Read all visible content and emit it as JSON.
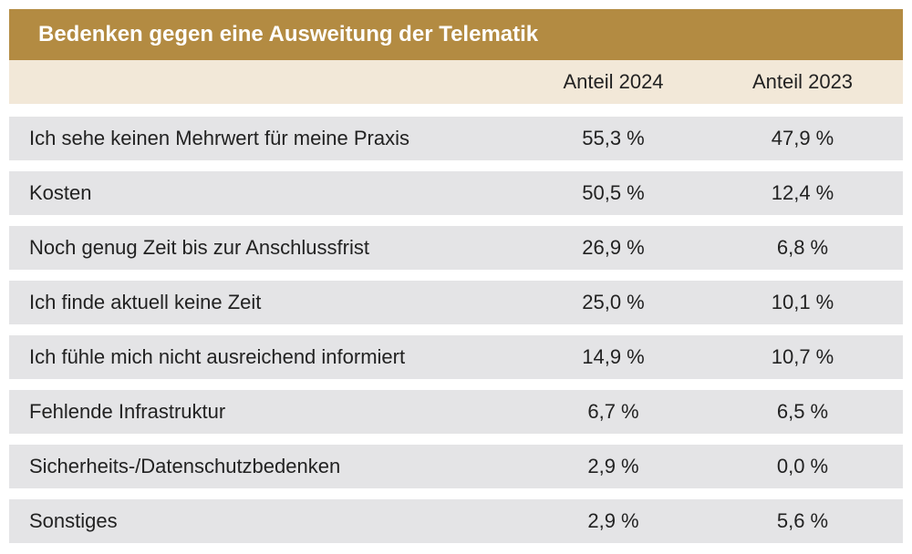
{
  "title": "Bedenken gegen eine Ausweitung der Telematik",
  "columns": [
    "",
    "Anteil 2024",
    "Anteil 2023"
  ],
  "rows": [
    {
      "label": "Ich sehe keinen Mehrwert für meine Praxis",
      "v2024": "55,3 %",
      "v2023": "47,9 %"
    },
    {
      "label": "Kosten",
      "v2024": "50,5 %",
      "v2023": "12,4 %"
    },
    {
      "label": "Noch genug Zeit bis zur Anschlussfrist",
      "v2024": "26,9 %",
      "v2023": "6,8 %"
    },
    {
      "label": "Ich finde aktuell keine Zeit",
      "v2024": "25,0 %",
      "v2023": "10,1 %"
    },
    {
      "label": "Ich fühle mich nicht ausreichend informiert",
      "v2024": "14,9 %",
      "v2023": "10,7 %"
    },
    {
      "label": "Fehlende Infrastruktur",
      "v2024": "6,7 %",
      "v2023": "6,5 %"
    },
    {
      "label": "Sicherheits-/Datenschutzbedenken",
      "v2024": "2,9 %",
      "v2023": "0,0 %"
    },
    {
      "label": "Sonstiges",
      "v2024": "2,9 %",
      "v2023": "5,6 %"
    }
  ],
  "colors": {
    "title_bg": "#b38b42",
    "header_bg": "#f2e8d8",
    "row_bg": "#e4e4e6"
  }
}
